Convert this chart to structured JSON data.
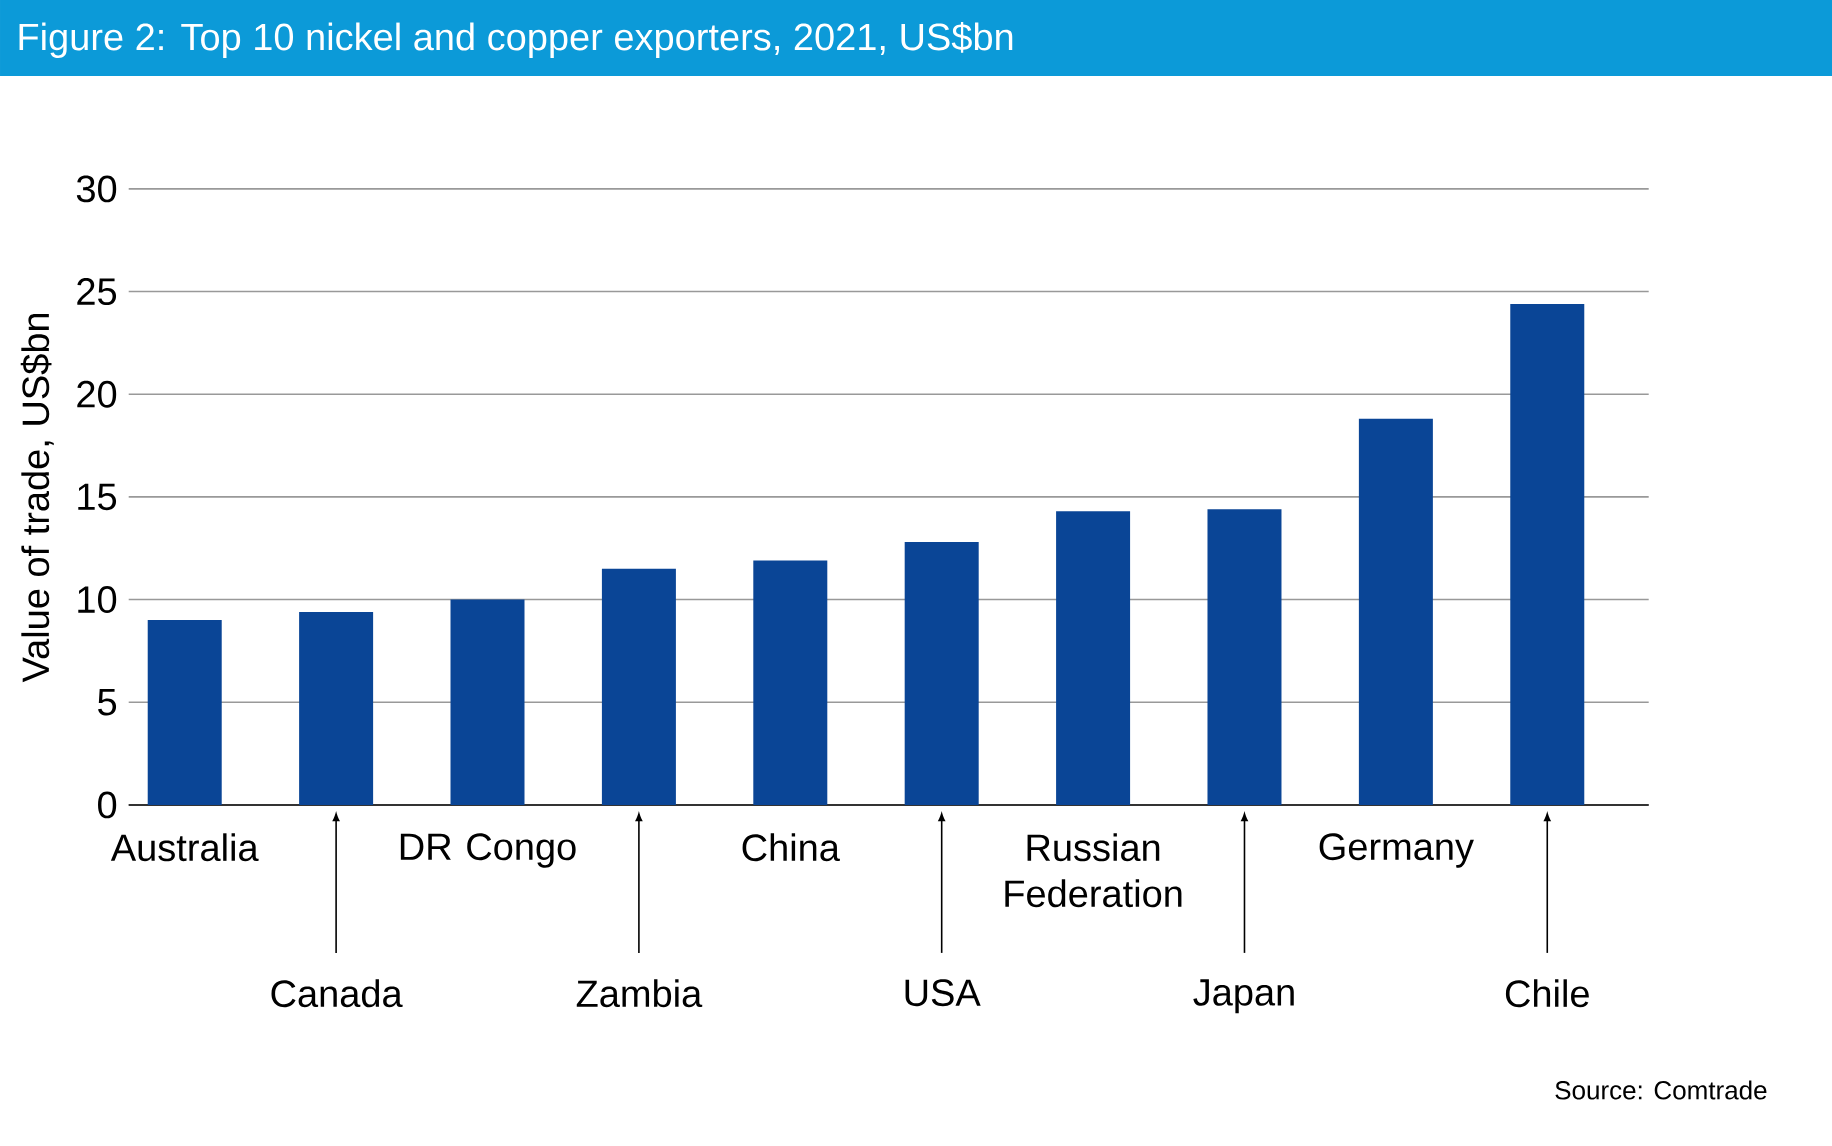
{
  "chart_data": {
    "type": "bar",
    "title": "Figure 2: Top 10 nickel and copper exporters, 2021, US$bn",
    "ylabel": "Value of trade, US$bn",
    "categories": [
      "Australia",
      "Canada",
      "DR Congo",
      "Zambia",
      "China",
      "USA",
      "Russian Federation",
      "Japan",
      "Germany",
      "Chile"
    ],
    "values": [
      9.0,
      9.4,
      10.0,
      11.5,
      11.9,
      12.8,
      14.3,
      14.4,
      18.8,
      24.4
    ],
    "color": "#0a4596",
    "ylim": [
      0,
      30
    ],
    "yticks": [
      0,
      5,
      10,
      15,
      20,
      25,
      30
    ],
    "grid": "y",
    "annotations": [
      "Source: Comtrade"
    ]
  }
}
